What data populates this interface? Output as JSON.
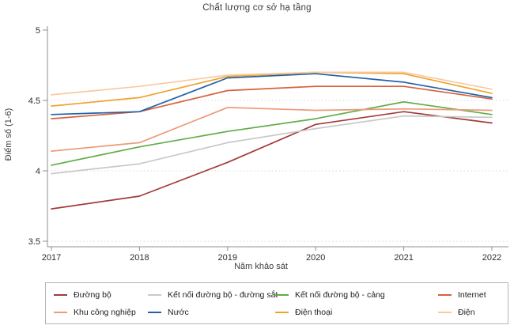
{
  "title": "Chất lượng cơ sở hạ tầng",
  "chart_data": {
    "type": "line",
    "title": "Chất lượng cơ sở hạ tầng",
    "xlabel": "Năm khảo sát",
    "ylabel": "Điểm số (1-6)",
    "x": [
      2017,
      2018,
      2019,
      2020,
      2021,
      2022
    ],
    "x_tick_labels": [
      "2017",
      "2018",
      "2019",
      "2020",
      "2021",
      "2022"
    ],
    "ylim": [
      3.5,
      5
    ],
    "yticks": [
      5,
      4.5,
      4,
      3.5
    ],
    "ytick_labels": [
      "5",
      "4.5",
      "4",
      "3.5"
    ],
    "grid": "horizontal dotted at 3.5, 4 and 4.5",
    "legend_position": "bottom-box-2rows",
    "series": [
      {
        "name": "Đường bộ",
        "color": "#a43a3a",
        "values": [
          3.73,
          3.82,
          4.06,
          4.33,
          4.42,
          4.34
        ]
      },
      {
        "name": "Kết nối đường bộ - đường sắt",
        "color": "#c9c9c9",
        "values": [
          3.98,
          4.05,
          4.2,
          4.3,
          4.39,
          4.38
        ]
      },
      {
        "name": "Kết nối đường bộ - cảng",
        "color": "#61ab47",
        "values": [
          4.04,
          4.17,
          4.28,
          4.37,
          4.49,
          4.4
        ]
      },
      {
        "name": "Internet",
        "color": "#d8613d",
        "values": [
          4.37,
          4.42,
          4.57,
          4.6,
          4.6,
          4.51
        ]
      },
      {
        "name": "Khu công nghiệp",
        "color": "#ec9a79",
        "values": [
          4.14,
          4.2,
          4.45,
          4.43,
          4.44,
          4.43
        ]
      },
      {
        "name": "Nước",
        "color": "#2161a9",
        "values": [
          4.4,
          4.42,
          4.66,
          4.69,
          4.63,
          4.52
        ]
      },
      {
        "name": "Điện thoại",
        "color": "#f0a22e",
        "values": [
          4.46,
          4.52,
          4.67,
          4.7,
          4.69,
          4.55
        ]
      },
      {
        "name": "Điện",
        "color": "#f7caa2",
        "values": [
          4.54,
          4.6,
          4.68,
          4.7,
          4.7,
          4.58
        ]
      }
    ],
    "legend_order": [
      0,
      1,
      2,
      3,
      4,
      5,
      6,
      7
    ]
  },
  "style_colors": {
    "axis": "#8f8f8f",
    "grid": "#d9d9d9",
    "tick_text": "#2e2e2e",
    "legend_border": "#b3b3b3"
  }
}
